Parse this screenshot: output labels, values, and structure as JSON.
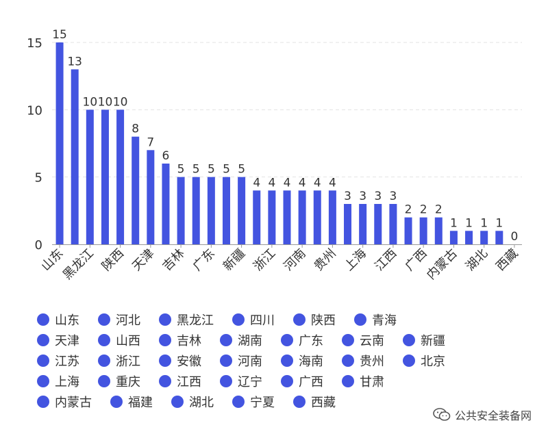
{
  "chart_data": {
    "type": "bar",
    "categories": [
      "山东",
      "河北",
      "黑龙江",
      "四川",
      "陕西",
      "青海",
      "天津",
      "山西",
      "吉林",
      "湖南",
      "广东",
      "云南",
      "新疆",
      "江苏",
      "浙江",
      "安徽",
      "河南",
      "海南",
      "贵州",
      "北京",
      "上海",
      "重庆",
      "江西",
      "辽宁",
      "广西",
      "甘肃",
      "内蒙古",
      "福建",
      "湖北",
      "宁夏",
      "西藏"
    ],
    "values": [
      15,
      13,
      10,
      10,
      10,
      8,
      7,
      6,
      5,
      5,
      5,
      5,
      5,
      4,
      4,
      4,
      4,
      4,
      4,
      3,
      3,
      3,
      3,
      2,
      2,
      2,
      1,
      1,
      1,
      1,
      0
    ],
    "x_tick_labels": [
      "山东",
      "黑龙江",
      "陕西",
      "天津",
      "吉林",
      "广东",
      "新疆",
      "浙江",
      "河南",
      "贵州",
      "上海",
      "江西",
      "广西",
      "内蒙古",
      "湖北",
      "西藏"
    ],
    "data_labels": [
      "15",
      "13",
      "10",
      "10",
      "10",
      "8",
      "7",
      "6",
      "5",
      "5",
      "5",
      "5",
      "5",
      "4",
      "4",
      "4",
      "4",
      "4",
      "4",
      "3",
      "3",
      "3",
      "3",
      "2",
      "2",
      "2",
      "1",
      "1",
      "1",
      "1",
      "0"
    ],
    "y_ticks": [
      0,
      5,
      10,
      15
    ],
    "ylim": [
      0,
      16
    ],
    "grid": true,
    "legend_position": "bottom",
    "bar_color": "#4354e0"
  },
  "legend": {
    "rows": [
      [
        "山东",
        "河北",
        "黑龙江",
        "四川",
        "陕西",
        "青海"
      ],
      [
        "天津",
        "山西",
        "吉林",
        "湖南",
        "广东",
        "云南",
        "新疆"
      ],
      [
        "江苏",
        "浙江",
        "安徽",
        "河南",
        "海南",
        "贵州",
        "北京"
      ],
      [
        "上海",
        "重庆",
        "江西",
        "辽宁",
        "广西",
        "甘肃"
      ],
      [
        "内蒙古",
        "福建",
        "湖北",
        "宁夏",
        "西藏"
      ]
    ],
    "color": "#4354e0"
  },
  "watermark": {
    "text": "公共安全装备网",
    "icon": "wechat-icon"
  }
}
